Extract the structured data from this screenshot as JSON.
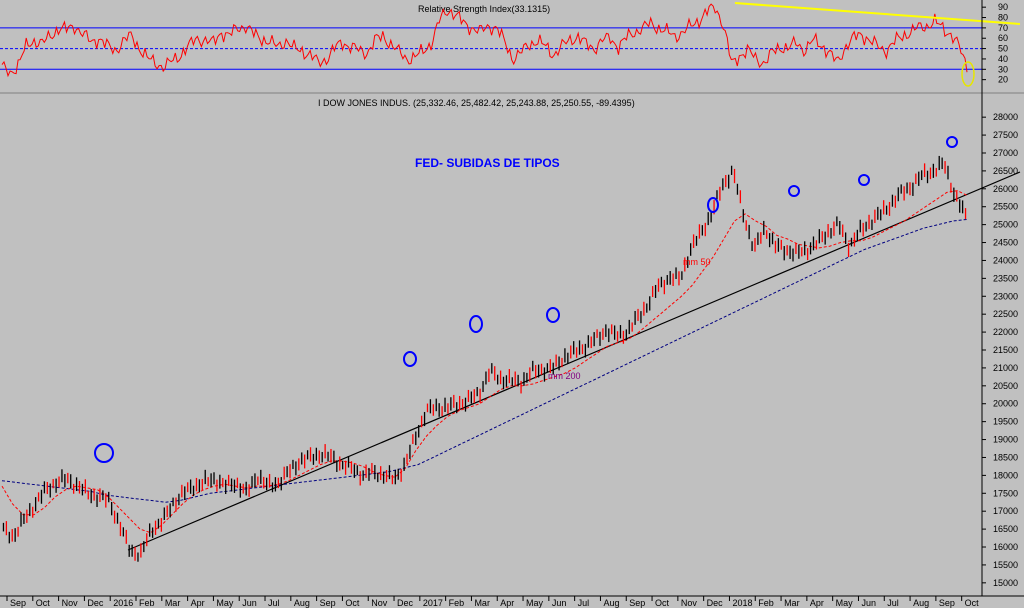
{
  "chart_data": [
    {
      "type": "line",
      "title": "Relative Strength Index(33.1315)",
      "ylim": [
        10,
        95
      ],
      "ticks": [
        20,
        30,
        40,
        50,
        60,
        70,
        80,
        90
      ],
      "levels": [
        30,
        50,
        70
      ],
      "colors": {
        "rsi": "#ff0000",
        "levels": "#0000ff",
        "trend": "#ffff00",
        "highlight": "#e6e600"
      },
      "series": [
        {
          "values": [
            32,
            26,
            35,
            52,
            58,
            55,
            62,
            70,
            68,
            72,
            64,
            56,
            60,
            52,
            48,
            58,
            62,
            50,
            40,
            36,
            32,
            38,
            44,
            52,
            60,
            58,
            55,
            66,
            62,
            70,
            72,
            64,
            60,
            56,
            52,
            58,
            50,
            48,
            44,
            36,
            40,
            50,
            56,
            52,
            48,
            46,
            58,
            62,
            54,
            46,
            40,
            42,
            48,
            56,
            78,
            88,
            82,
            74,
            70,
            66,
            72,
            70,
            56,
            40,
            46,
            54,
            58,
            52,
            44,
            52,
            58,
            62,
            54,
            50,
            58,
            60,
            52,
            60,
            66,
            70,
            74,
            70,
            66,
            62,
            66,
            72,
            78,
            86,
            90,
            72,
            34,
            44,
            48,
            40,
            36,
            46,
            52,
            50,
            56,
            48,
            58,
            54,
            46,
            36,
            52,
            60,
            64,
            58,
            52,
            48,
            56,
            62,
            66,
            70,
            72,
            76,
            70,
            64,
            52,
            33
          ]
        }
      ]
    },
    {
      "type": "line",
      "title": "I DOW JONES INDUS. (25,332.46, 25,482.42, 25,243.88, 25,250.55, -89.4395)",
      "annotation": "FED- SUBIDAS DE TIPOS",
      "ylim": [
        14800,
        28200
      ],
      "ticks": [
        15000,
        15500,
        16000,
        16500,
        17000,
        17500,
        18000,
        18500,
        19000,
        19500,
        20000,
        20500,
        21000,
        21500,
        22000,
        22500,
        23000,
        23500,
        24000,
        24500,
        25000,
        25500,
        26000,
        26500,
        27000,
        27500,
        28000
      ],
      "x_labels": [
        "Sep",
        "Oct",
        "Nov",
        "Dec",
        "2016",
        "Feb",
        "Mar",
        "Apr",
        "May",
        "Jun",
        "Jul",
        "Aug",
        "Sep",
        "Oct",
        "Nov",
        "Dec",
        "2017",
        "Feb",
        "Mar",
        "Apr",
        "May",
        "Jun",
        "Jul",
        "Aug",
        "Sep",
        "Oct",
        "Nov",
        "Dec",
        "2018",
        "Feb",
        "Mar",
        "Apr",
        "May",
        "Jun",
        "Jul",
        "Aug",
        "Sep",
        "Oct"
      ],
      "colors": {
        "price": "#000000",
        "ma50": "#ff0000",
        "ma200": "#000080",
        "trendline": "#000000",
        "circles": "#0000ff",
        "annotation": "#0000ff",
        "ma_label": "#800080"
      },
      "series": [
        {
          "name": "price",
          "values": [
            16500,
            16300,
            16800,
            17200,
            17600,
            17800,
            17900,
            17700,
            17500,
            17400,
            17300,
            16600,
            15900,
            15800,
            16500,
            16700,
            17200,
            17500,
            17700,
            17800,
            17900,
            17700,
            17800,
            17500,
            18000,
            17700,
            17800,
            18100,
            18400,
            18500,
            18600,
            18500,
            18300,
            18200,
            18000,
            18100,
            18000,
            17900,
            18300,
            19100,
            19800,
            19900,
            19900,
            20000,
            20100,
            20300,
            20900,
            20700,
            20650,
            20600,
            20900,
            20950,
            21000,
            21300,
            21450,
            21600,
            21800,
            22050,
            21900,
            22000,
            22400,
            22800,
            23300,
            23500,
            23500,
            24300,
            24800,
            25300,
            26100,
            26500,
            25300,
            24300,
            24900,
            24400,
            24300,
            24200,
            24300,
            24500,
            24800,
            25000,
            24400,
            24800,
            25100,
            25300,
            25600,
            25900,
            26100,
            26400,
            26500,
            26700,
            25800,
            25250
          ]
        },
        {
          "name": "mm 50",
          "values": [
            17700,
            17200,
            16900,
            16900,
            17100,
            17400,
            17600,
            17700,
            17650,
            17600,
            17400,
            17100,
            16800,
            16500,
            16400,
            16600,
            16900,
            17200,
            17450,
            17600,
            17700,
            17750,
            17700,
            17650,
            17700,
            17700,
            17750,
            17850,
            18000,
            18150,
            18300,
            18400,
            18400,
            18350,
            18250,
            18100,
            18000,
            17950,
            18200,
            18700,
            19100,
            19400,
            19650,
            19800,
            19900,
            20000,
            20200,
            20400,
            20500,
            20500,
            20550,
            20650,
            20750,
            20850,
            21000,
            21200,
            21400,
            21600,
            21700,
            21800,
            22000,
            22250,
            22500,
            22750,
            23000,
            23300,
            23700,
            24100,
            24600,
            25100,
            25300,
            25100,
            24950,
            24700,
            24600,
            24450,
            24400,
            24350,
            24400,
            24500,
            24550,
            24550,
            24650,
            24800,
            24950,
            25100,
            25300,
            25500,
            25700,
            25900,
            25950,
            25800
          ]
        },
        {
          "name": "mm 200",
          "values": [
            17850,
            17800,
            17750,
            17700,
            17650,
            17600,
            17550,
            17450,
            17400,
            17350,
            17300,
            17250,
            17300,
            17400,
            17500,
            17550,
            17600,
            17650,
            17700,
            17750,
            17800,
            17850,
            17900,
            17950,
            18000,
            18050,
            18100,
            18200,
            18300,
            18500,
            18700,
            18900,
            19100,
            19300,
            19500,
            19700,
            19900,
            20100,
            20300,
            20500,
            20700,
            20900,
            21100,
            21300,
            21500,
            21700,
            21900,
            22100,
            22300,
            22500,
            22700,
            22900,
            23100,
            23300,
            23500,
            23700,
            23900,
            24100,
            24300,
            24450,
            24600,
            24750,
            24900,
            25000,
            25100,
            25150
          ]
        }
      ]
    }
  ],
  "labels": {
    "ma50": "mm 50",
    "ma200": "mm 200"
  }
}
